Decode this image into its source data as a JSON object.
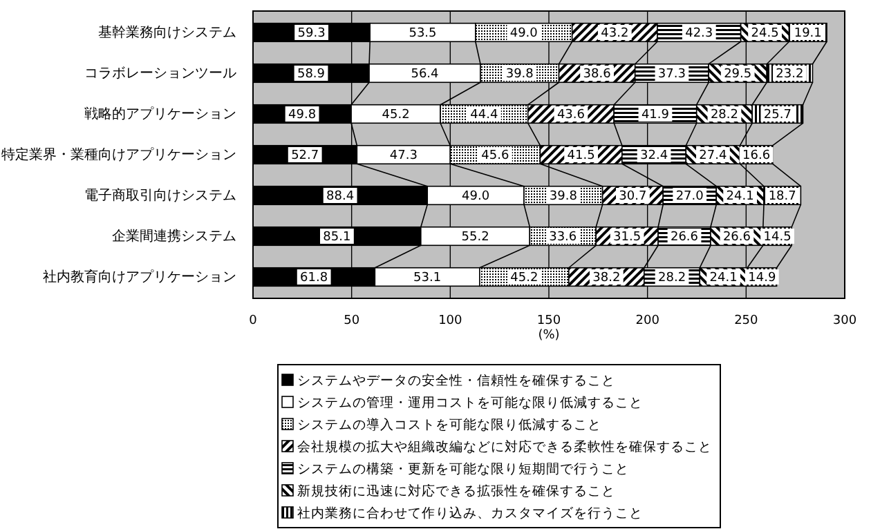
{
  "chart_data": {
    "type": "bar",
    "orientation": "horizontal",
    "stacked": true,
    "grid": "x",
    "legend": "bottom",
    "xlabel": "(%)",
    "categories": [
      "基幹業務向けシステム",
      "コラボレーションツール",
      "戦略的アプリケーション",
      "特定業界・業種向けアプリケーション",
      "電子商取引向けシステム",
      "企業間連携システム",
      "社内教育向けアプリケーション"
    ],
    "xlim": [
      0,
      300
    ],
    "xticks": [
      0,
      50,
      100,
      150,
      200,
      250,
      300
    ],
    "series": [
      {
        "name": "システムやデータの安全性・信頼性を確保すること",
        "color": "#000000",
        "values": [
          59.3,
          58.9,
          49.8,
          52.7,
          88.4,
          85.1,
          61.8
        ],
        "value_labels": [
          "59.3",
          "58.9",
          "49.8",
          "52.7",
          "88.4",
          "85.1",
          "61.8"
        ]
      },
      {
        "name": "システムの管理・運用コストを可能な限り低減すること",
        "color": "#ffffff",
        "values": [
          53.5,
          56.4,
          45.2,
          47.3,
          49.0,
          55.2,
          53.1
        ],
        "value_labels": [
          "53.5",
          "56.4",
          "45.2",
          "47.3",
          "49.0",
          "55.2",
          "53.1"
        ]
      },
      {
        "name": "システムの導入コストを可能な限り低減すること",
        "color": "#000000",
        "values": [
          49.0,
          39.8,
          44.4,
          45.6,
          39.8,
          33.6,
          45.2
        ],
        "value_labels": [
          "49.0",
          "39.8",
          "44.4",
          "45.6",
          "39.8",
          "33.6",
          "45.2"
        ]
      },
      {
        "name": "会社規模の拡大や組織改編などに対応できる柔軟性を確保すること",
        "color": "#000000",
        "values": [
          43.2,
          38.6,
          43.6,
          41.5,
          30.7,
          31.5,
          38.2
        ],
        "value_labels": [
          "43.2",
          "38.6",
          "43.6",
          "41.5",
          "30.7",
          "31.5",
          "38.2"
        ]
      },
      {
        "name": "システムの構築・更新を可能な限り短期間で行うこと",
        "color": "#000000",
        "values": [
          42.3,
          37.3,
          41.9,
          32.4,
          27.0,
          26.6,
          28.2
        ],
        "value_labels": [
          "42.3",
          "37.3",
          "41.9",
          "32.4",
          "27.0",
          "26.6",
          "28.2"
        ]
      },
      {
        "name": "新規技術に迅速に対応できる拡張性を確保すること",
        "color": "#000000",
        "values": [
          24.5,
          29.5,
          28.2,
          27.4,
          24.1,
          26.6,
          24.1
        ],
        "value_labels": [
          "24.5",
          "29.5",
          "28.2",
          "27.4",
          "24.1",
          "26.6",
          "24.1"
        ]
      },
      {
        "name": "社内業務に合わせて作り込み、カスタマイズを行うこと",
        "color": "#000000",
        "values": [
          19.1,
          23.2,
          25.7,
          16.6,
          18.7,
          14.5,
          14.9
        ],
        "value_labels": [
          "19.1",
          "23.2",
          "25.7",
          "16.6",
          "18.7",
          "14.5",
          "14.9"
        ]
      }
    ]
  }
}
